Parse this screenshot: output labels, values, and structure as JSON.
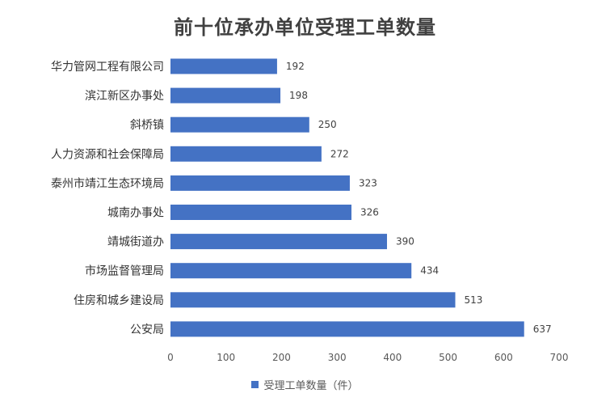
{
  "chart_data": {
    "type": "bar",
    "orientation": "horizontal",
    "title": "前十位承办单位受理工单数量",
    "categories": [
      "华力管网工程有限公司",
      "滨江新区办事处",
      "斜桥镇",
      "人力资源和社会保障局",
      "泰州市靖江生态环境局",
      "城南办事处",
      "靖城街道办",
      "市场监督管理局",
      "住房和城乡建设局",
      "公安局"
    ],
    "series": [
      {
        "name": "受理工单数量（件）",
        "values": [
          192,
          198,
          250,
          272,
          323,
          326,
          390,
          434,
          513,
          637
        ]
      }
    ],
    "xlim": [
      0,
      700
    ],
    "xticks": [
      0,
      100,
      200,
      300,
      400,
      500,
      600,
      700
    ],
    "grid": false,
    "legend_position": "bottom",
    "color": "#4472C4"
  }
}
